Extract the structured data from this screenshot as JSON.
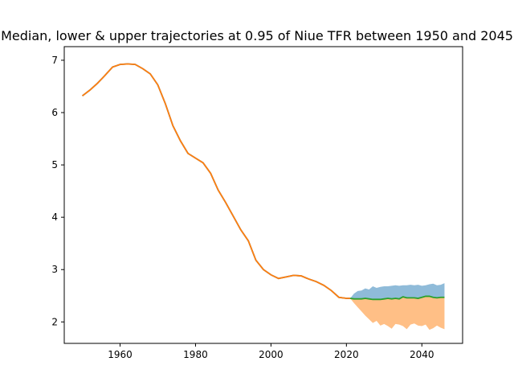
{
  "chart_data": {
    "type": "area",
    "title": "Median, lower & upper trajectories at 0.95 of Niue TFR between 1950 and 2045",
    "xlabel": "",
    "ylabel": "",
    "xlim": [
      1945.2,
      2050.8
    ],
    "ylim": [
      1.59,
      7.26
    ],
    "grid": false,
    "legend": "none",
    "x_ticks": [
      1960,
      1980,
      2000,
      2020,
      2040
    ],
    "y_ticks": [
      2,
      3,
      4,
      5,
      6,
      7
    ],
    "colors": {
      "historical": "#1f77b4",
      "historical_overlay": "#ff7f0e",
      "median": "#2ca02c",
      "upper_band": "#1f77b4",
      "lower_band": "#ff7f0e"
    },
    "series": [
      {
        "role": "historical",
        "x": [
          1950,
          1952,
          1954,
          1956,
          1958,
          1960,
          1962,
          1964,
          1966,
          1968,
          1970,
          1972,
          1974,
          1976,
          1978,
          1980,
          1982,
          1984,
          1986,
          1988,
          1990,
          1992,
          1994,
          1996,
          1998,
          2000,
          2002,
          2004,
          2006,
          2008,
          2010,
          2012,
          2014,
          2016,
          2018,
          2020,
          2021
        ],
        "y": [
          6.32,
          6.43,
          6.56,
          6.71,
          6.87,
          6.92,
          6.93,
          6.92,
          6.84,
          6.74,
          6.53,
          6.17,
          5.75,
          5.46,
          5.22,
          5.13,
          5.04,
          4.84,
          4.52,
          4.28,
          4.02,
          3.76,
          3.55,
          3.18,
          3.0,
          2.9,
          2.83,
          2.86,
          2.89,
          2.88,
          2.82,
          2.77,
          2.7,
          2.6,
          2.47,
          2.45,
          2.45
        ]
      },
      {
        "role": "median",
        "x": [
          2021,
          2022,
          2023,
          2024,
          2025,
          2026,
          2027,
          2028,
          2029,
          2030,
          2031,
          2032,
          2033,
          2034,
          2035,
          2036,
          2037,
          2038,
          2039,
          2040,
          2041,
          2042,
          2043,
          2044,
          2045,
          2046
        ],
        "y": [
          2.45,
          2.44,
          2.44,
          2.44,
          2.45,
          2.44,
          2.43,
          2.43,
          2.43,
          2.44,
          2.45,
          2.44,
          2.45,
          2.44,
          2.48,
          2.46,
          2.46,
          2.46,
          2.45,
          2.47,
          2.49,
          2.49,
          2.47,
          2.46,
          2.47,
          2.47
        ]
      },
      {
        "role": "upper",
        "x": [
          2021,
          2022,
          2023,
          2024,
          2025,
          2026,
          2027,
          2028,
          2029,
          2030,
          2031,
          2032,
          2033,
          2034,
          2035,
          2036,
          2037,
          2038,
          2039,
          2040,
          2041,
          2042,
          2043,
          2044,
          2045,
          2046
        ],
        "y": [
          2.45,
          2.54,
          2.59,
          2.6,
          2.64,
          2.62,
          2.68,
          2.65,
          2.67,
          2.68,
          2.68,
          2.69,
          2.7,
          2.69,
          2.7,
          2.7,
          2.71,
          2.7,
          2.71,
          2.69,
          2.7,
          2.72,
          2.73,
          2.7,
          2.71,
          2.74
        ]
      },
      {
        "role": "lower",
        "x": [
          2021,
          2022,
          2023,
          2024,
          2025,
          2026,
          2027,
          2028,
          2029,
          2030,
          2031,
          2032,
          2033,
          2034,
          2035,
          2036,
          2037,
          2038,
          2039,
          2040,
          2041,
          2042,
          2043,
          2044,
          2045,
          2046
        ],
        "y": [
          2.45,
          2.36,
          2.28,
          2.2,
          2.12,
          2.05,
          1.98,
          2.02,
          1.93,
          1.96,
          1.92,
          1.87,
          1.96,
          1.95,
          1.92,
          1.86,
          1.95,
          1.97,
          1.93,
          1.92,
          1.95,
          1.85,
          1.88,
          1.93,
          1.89,
          1.86
        ]
      }
    ]
  }
}
